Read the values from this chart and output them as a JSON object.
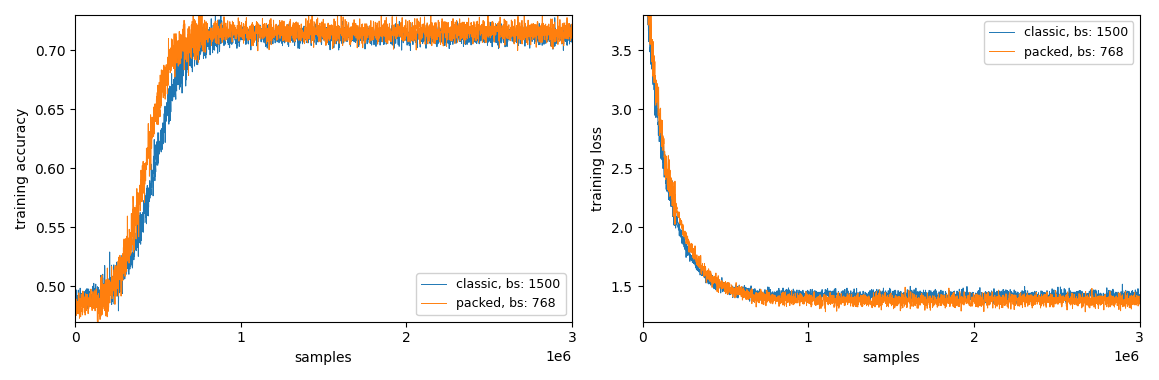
{
  "classic_color": "#1f77b4",
  "packed_color": "#ff7f0e",
  "legend1": [
    "classic, bs: 1500",
    "packed, bs: 768"
  ],
  "legend2": [
    "classic, bs: 1500",
    "packed, bs: 768"
  ],
  "ylabel_acc": "training accuracy",
  "ylabel_loss": "training loss",
  "xlabel": "samples",
  "xlim": [
    0,
    3000000
  ],
  "xticks": [
    0,
    1000000,
    2000000,
    3000000
  ],
  "acc_ylim": [
    0.47,
    0.73
  ],
  "loss_ylim": [
    1.2,
    3.8
  ],
  "acc_yticks": [
    0.5,
    0.55,
    0.6,
    0.65,
    0.7
  ],
  "loss_yticks": [
    1.5,
    2.0,
    2.5,
    3.0,
    3.5
  ],
  "n_points": 3000,
  "acc_noise_classic": 0.004,
  "acc_noise_packed": 0.005,
  "loss_noise_classic": 0.025,
  "loss_noise_packed": 0.03
}
